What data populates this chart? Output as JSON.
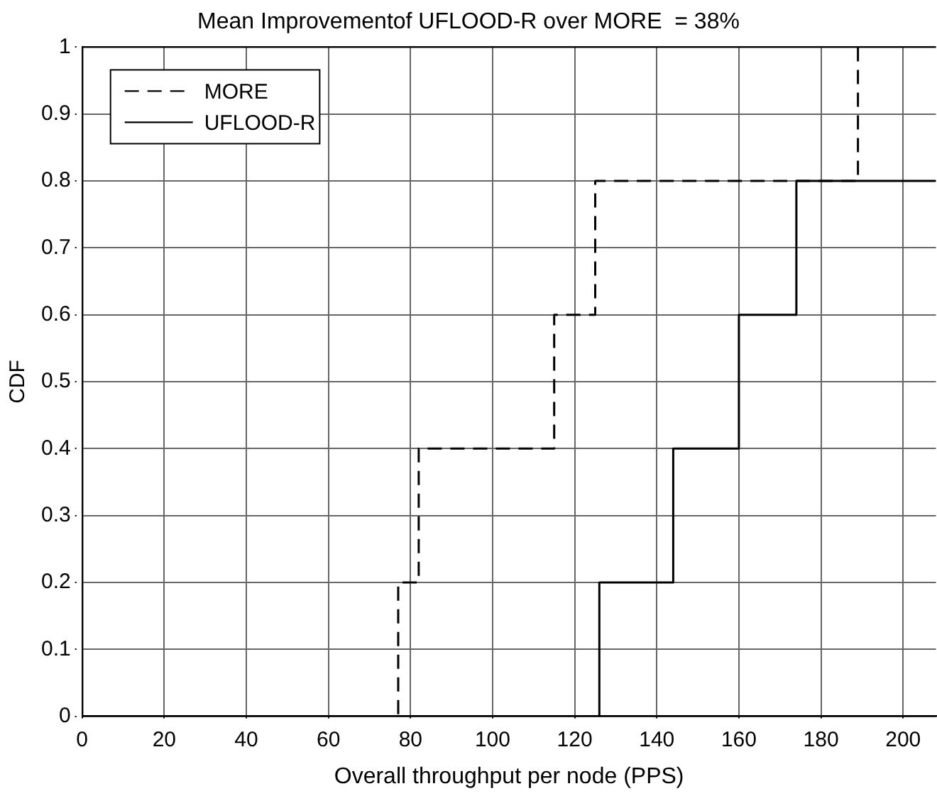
{
  "chart_data": {
    "type": "step",
    "title": "Mean Improvementof UFLOOD-R over MORE  = 38%",
    "xlabel": "Overall throughput per node (PPS)",
    "ylabel": "CDF",
    "series": [
      {
        "name": "MORE",
        "color": "#000000",
        "line_style": "dashed",
        "x": [
          0,
          77,
          82,
          115,
          125,
          189
        ],
        "values": [
          0,
          0.2,
          0.4,
          0.6,
          0.8,
          1.0
        ]
      },
      {
        "name": "UFLOOD-R",
        "color": "#000000",
        "line_style": "solid",
        "x": [
          0,
          126,
          144,
          160,
          174,
          208
        ],
        "values": [
          0,
          0.2,
          0.4,
          0.6,
          0.8,
          0.8
        ]
      }
    ],
    "xlim": [
      0,
      208
    ],
    "xticks": [
      0,
      20,
      40,
      60,
      80,
      100,
      120,
      140,
      160,
      180,
      200
    ],
    "ylim": [
      0,
      1
    ],
    "yticks": [
      0,
      0.1,
      0.2,
      0.3,
      0.4,
      0.5,
      0.6,
      0.7,
      0.8,
      0.9,
      1
    ],
    "grid": true,
    "legend": "top left"
  }
}
